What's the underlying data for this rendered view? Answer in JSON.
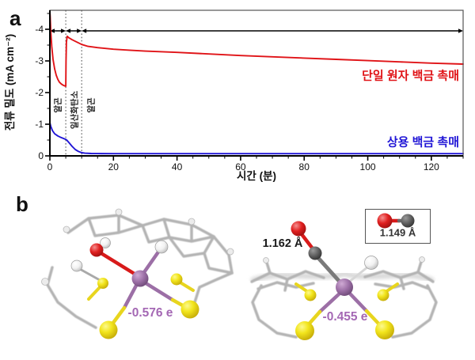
{
  "figure": {
    "panel_a_label": "a",
    "panel_b_label": "b",
    "background": "#ffffff"
  },
  "chart_data": {
    "type": "line",
    "title": "",
    "xlabel": "시간 (분)",
    "ylabel": "전류 밀도 (mA cm⁻²)",
    "xlim": [
      0,
      130
    ],
    "ylim": [
      0,
      -4.6
    ],
    "axis_note": "y axis inverted: 0 at bottom, -4 near top (current density)",
    "x_major_ticks": [
      0,
      20,
      40,
      60,
      80,
      100,
      120
    ],
    "x_minor_step": 5,
    "y_major_ticks": [
      0,
      -1,
      -2,
      -3,
      -4
    ],
    "y_minor_step": 0.5,
    "grid": false,
    "legend_position": "inline colored labels at right of curves",
    "annotations": {
      "gas_labels": [
        "알곤",
        "일산화탄소",
        "알곤"
      ],
      "dashed_lines_x": [
        5,
        10
      ],
      "arrow_y": -3.95,
      "arrow_segments": [
        [
          0,
          5
        ],
        [
          5,
          10
        ],
        [
          10,
          130
        ]
      ]
    },
    "series": [
      {
        "name": "단일 원자 백금 촉매",
        "color": "#e01317",
        "x": [
          0,
          0.1,
          0.3,
          0.6,
          1.0,
          1.5,
          2.0,
          2.5,
          3.0,
          3.6,
          4.2,
          4.7,
          5.0,
          5.08,
          5.2,
          5.45,
          6,
          7,
          8,
          10,
          12,
          15,
          20,
          25,
          30,
          40,
          50,
          60,
          70,
          80,
          90,
          100,
          110,
          120,
          130
        ],
        "y": [
          -4.56,
          -4.4,
          -3.9,
          -3.45,
          -3.05,
          -2.75,
          -2.55,
          -2.42,
          -2.33,
          -2.27,
          -2.23,
          -2.21,
          -2.2,
          -3.0,
          -3.6,
          -3.78,
          -3.73,
          -3.67,
          -3.62,
          -3.52,
          -3.46,
          -3.42,
          -3.37,
          -3.34,
          -3.31,
          -3.27,
          -3.22,
          -3.17,
          -3.13,
          -3.09,
          -3.05,
          -3.01,
          -2.97,
          -2.93,
          -2.9
        ]
      },
      {
        "name": "상용 백금 촉매",
        "color": "#2015d6",
        "x": [
          0,
          0.3,
          0.8,
          1.5,
          2.5,
          3.5,
          4.5,
          5.0,
          5.3,
          6,
          6.5,
          7,
          8,
          9,
          10,
          11,
          13,
          15,
          20,
          30,
          40,
          60,
          80,
          100,
          120,
          130
        ],
        "y": [
          -1.05,
          -0.93,
          -0.8,
          -0.7,
          -0.63,
          -0.58,
          -0.54,
          -0.52,
          -0.5,
          -0.42,
          -0.36,
          -0.3,
          -0.2,
          -0.14,
          -0.1,
          -0.085,
          -0.075,
          -0.072,
          -0.07,
          -0.07,
          -0.07,
          -0.07,
          -0.07,
          -0.07,
          -0.07,
          -0.07
        ]
      }
    ]
  },
  "panel_b": {
    "left_molecule": {
      "description": "single-atom Pt catalyst model with OH ligand",
      "charge_label": "-0.576 e",
      "charge_color": "#a468b4"
    },
    "right_molecule": {
      "description": "single-atom Pt catalyst model with adsorbed CO",
      "charge_label": "-0.455 e",
      "bond_length_label": "1.162 Å"
    },
    "inset": {
      "description": "free CO molecule reference",
      "bond_length_label": "1.149 Å"
    },
    "atom_colors": {
      "pt": "#9c6fa6",
      "s": "#f2e51c",
      "o": "#e02020",
      "c_dark": "#5f5f5f",
      "h": "#ffffff",
      "skeleton": "#b4b4b4"
    }
  }
}
